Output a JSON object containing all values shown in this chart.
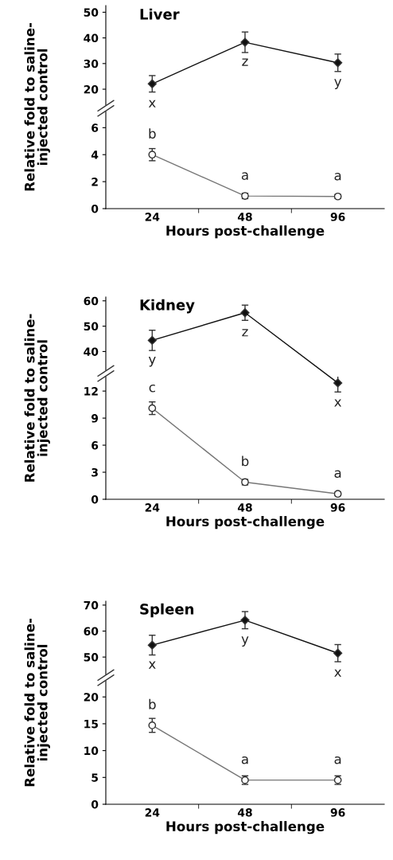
{
  "chart_data": [
    {
      "type": "line",
      "title": "Liver",
      "categories": [
        "24",
        "48",
        "96"
      ],
      "ylim": [
        13.8,
        52.6
      ],
      "yticks": [
        20,
        30,
        40,
        50
      ],
      "tick_labels": "y",
      "series": [
        {
          "color": "#111111",
          "marker": "diamond",
          "values": [
            22.1,
            38.3,
            30.3
          ],
          "errors": [
            3.2,
            4,
            3.4
          ]
        },
        {
          "color": "#777777",
          "marker": "circle",
          "values": [
            null,
            null,
            null
          ]
        }
      ],
      "annotations": [
        {
          "text": "x",
          "x": "24",
          "y": 22.1
        },
        {
          "text": "z",
          "x": "48",
          "y": 38.3
        },
        {
          "text": "y",
          "x": "96",
          "y": 30.3
        }
      ]
    },
    {
      "type": "line",
      "categories": [
        "24",
        "48",
        "96"
      ],
      "ylim": [
        0,
        7.2
      ],
      "yticks": [
        0,
        2,
        4,
        6
      ],
      "xlabel": "Hours post-challenge",
      "ylabel": "Relative fold to saline-\ninjected control",
      "series": [
        {
          "color": "#111111",
          "marker": "diamond",
          "values": [
            null,
            null,
            null
          ]
        },
        {
          "color": "#777777",
          "marker": "circle",
          "values": [
            4.0,
            0.94,
            0.9
          ],
          "errors": [
            0.45,
            0.2,
            0.15
          ]
        }
      ],
      "annotations": [
        {
          "text": "b",
          "x": "24",
          "y": 4.0
        },
        {
          "text": "a",
          "x": "48",
          "y": 0.94
        },
        {
          "text": "a",
          "x": "96",
          "y": 0.9
        }
      ]
    },
    {
      "type": "line",
      "title": "Kidney",
      "categories": [
        "24",
        "48",
        "96"
      ],
      "ylim": [
        32.6,
        61.5
      ],
      "yticks": [
        40,
        50,
        60
      ],
      "tick_labels": "y",
      "series": [
        {
          "color": "#111111",
          "marker": "diamond",
          "values": [
            44.4,
            55.3,
            null
          ],
          "errors": [
            4,
            3,
            null
          ]
        },
        {
          "color": "#777777",
          "marker": "circle",
          "values": [
            null,
            null,
            null
          ]
        }
      ],
      "annotations": [
        {
          "text": "y",
          "x": "24",
          "y": 44.4
        },
        {
          "text": "z",
          "x": "48",
          "y": 55.3
        }
      ]
    },
    {
      "type": "line",
      "categories": [
        "24",
        "48",
        "96"
      ],
      "ylim": [
        0,
        13.6
      ],
      "yticks": [
        0,
        3,
        6,
        9,
        12
      ],
      "xlabel": "Hours post-challenge",
      "ylabel": "Relative fold to saline-\ninjected control",
      "series": [
        {
          "color": "#111111",
          "marker": "diamond",
          "values": [
            null,
            null,
            12.9
          ],
          "errors": [
            null,
            null,
            1
          ]
        },
        {
          "color": "#777777",
          "marker": "circle",
          "values": [
            10.1,
            1.9,
            0.6
          ],
          "errors": [
            0.7,
            0.3,
            0.2
          ]
        }
      ],
      "annotations": [
        {
          "text": "x",
          "x": "96",
          "y": 12.9
        },
        {
          "text": "c",
          "x": "24",
          "y": 10.1
        },
        {
          "text": "b",
          "x": "48",
          "y": 1.9
        },
        {
          "text": "a",
          "x": "96",
          "y": 0.6
        }
      ]
    },
    {
      "type": "line",
      "title": "Spleen",
      "categories": [
        "24",
        "48",
        "96"
      ],
      "ylim": [
        43.3,
        71.5
      ],
      "yticks": [
        50,
        60,
        70
      ],
      "tick_labels": "y",
      "series": [
        {
          "color": "#111111",
          "marker": "diamond",
          "values": [
            54.6,
            64.2,
            51.5
          ],
          "errors": [
            3.8,
            3.3,
            3.3
          ]
        },
        {
          "color": "#777777",
          "marker": "circle",
          "values": [
            null,
            null,
            null
          ]
        }
      ],
      "annotations": [
        {
          "text": "x",
          "x": "24",
          "y": 54.6
        },
        {
          "text": "y",
          "x": "48",
          "y": 64.2
        },
        {
          "text": "x",
          "x": "96",
          "y": 51.5
        }
      ]
    },
    {
      "type": "line",
      "categories": [
        "24",
        "48",
        "96"
      ],
      "ylim": [
        0,
        23
      ],
      "yticks": [
        0,
        5,
        10,
        15,
        20
      ],
      "xlabel": "Hours post-challenge",
      "ylabel": "Relative fold to saline-\ninjected control",
      "series": [
        {
          "color": "#111111",
          "marker": "diamond",
          "values": [
            null,
            null,
            null
          ]
        },
        {
          "color": "#777777",
          "marker": "circle",
          "values": [
            14.7,
            4.5,
            4.5
          ],
          "errors": [
            1.3,
            0.8,
            0.8
          ]
        }
      ],
      "annotations": [
        {
          "text": "b",
          "x": "24",
          "y": 14.7
        },
        {
          "text": "a",
          "x": "48",
          "y": 4.5
        },
        {
          "text": "a",
          "x": "96",
          "y": 4.5
        }
      ]
    }
  ]
}
